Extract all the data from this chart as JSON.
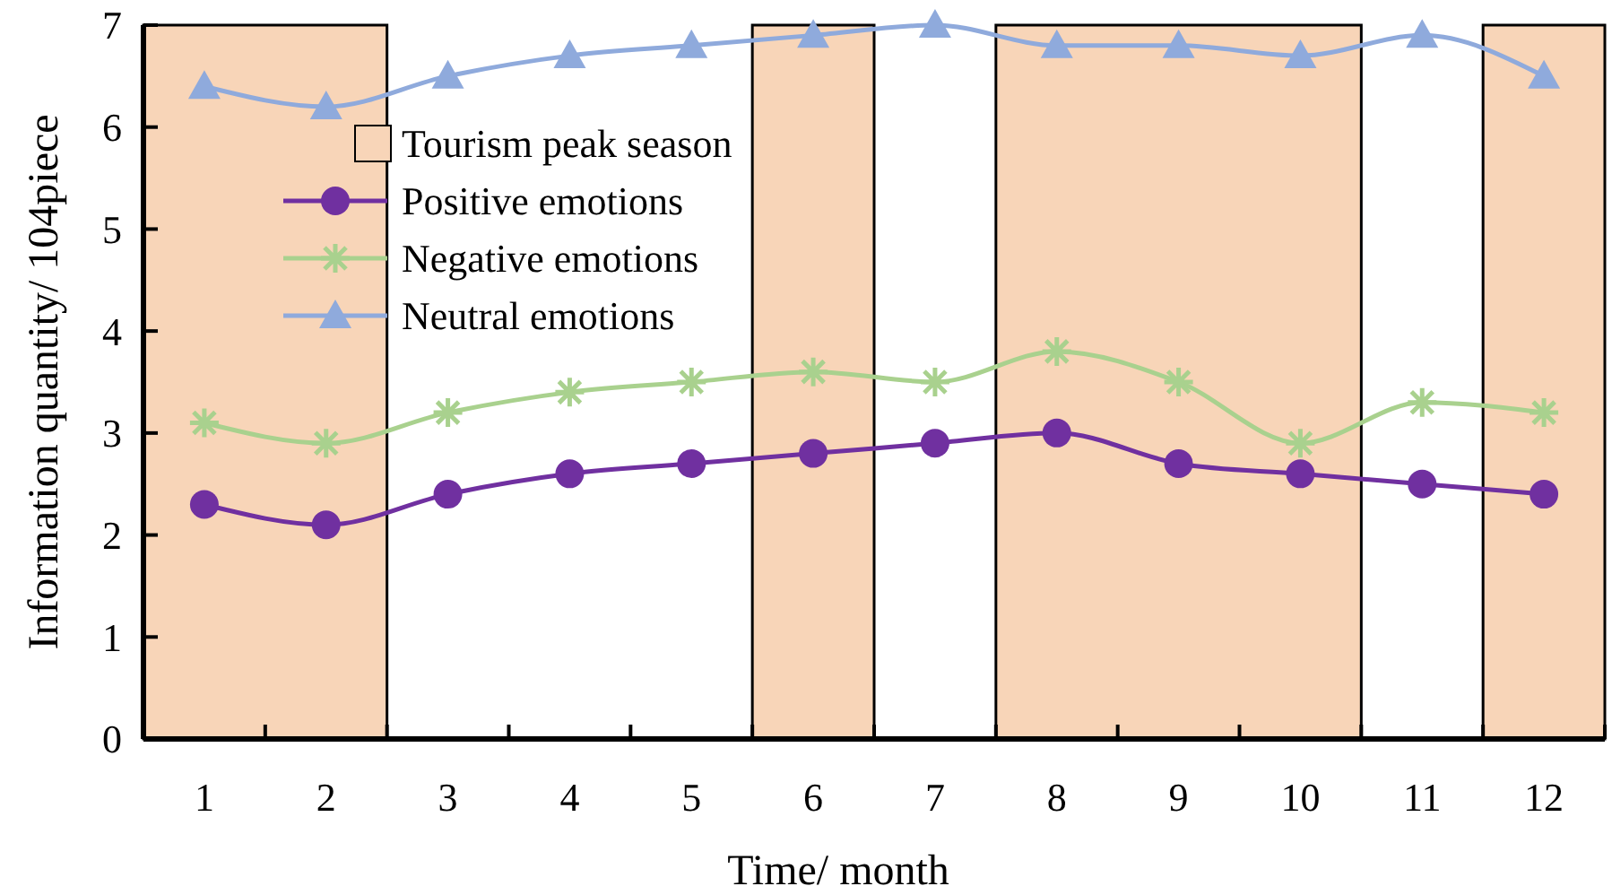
{
  "chart_data": {
    "type": "line",
    "xlabel": "Time/ month",
    "ylabel": "Information quantity/ 104piece",
    "x": [
      1,
      2,
      3,
      4,
      5,
      6,
      7,
      8,
      9,
      10,
      11,
      12
    ],
    "xlim": [
      0.5,
      12.5
    ],
    "xticks": [
      1,
      2,
      3,
      4,
      5,
      6,
      7,
      8,
      9,
      10,
      11,
      12
    ],
    "ylim": [
      0,
      7
    ],
    "yticks": [
      0,
      1,
      2,
      3,
      4,
      5,
      6,
      7
    ],
    "series": [
      {
        "name": "Positive emotions",
        "color": "#7030a0",
        "marker": "circle",
        "values": [
          2.3,
          2.1,
          2.4,
          2.6,
          2.7,
          2.8,
          2.9,
          3.0,
          2.7,
          2.6,
          2.5,
          2.4
        ]
      },
      {
        "name": "Negative emotions",
        "color": "#a9d18e",
        "marker": "cross",
        "values": [
          3.1,
          2.9,
          3.2,
          3.4,
          3.5,
          3.6,
          3.5,
          3.8,
          3.5,
          2.9,
          3.3,
          3.2
        ]
      },
      {
        "name": "Neutral emotions",
        "color": "#8faadc",
        "marker": "triangle",
        "values": [
          6.4,
          6.2,
          6.5,
          6.7,
          6.8,
          6.9,
          7.0,
          6.8,
          6.8,
          6.7,
          6.9,
          6.5
        ]
      }
    ],
    "bands": [
      {
        "axis": "x",
        "from": 0.5,
        "to": 2.5,
        "label": "Tourism peak season",
        "color": "#f8d5b8"
      },
      {
        "axis": "x",
        "from": 5.5,
        "to": 6.5,
        "color": "#f8d5b8"
      },
      {
        "axis": "x",
        "from": 7.5,
        "to": 10.5,
        "color": "#f8d5b8"
      },
      {
        "axis": "x",
        "from": 11.5,
        "to": 12.5,
        "color": "#f8d5b8"
      }
    ],
    "legend": "top left",
    "grid": false
  }
}
